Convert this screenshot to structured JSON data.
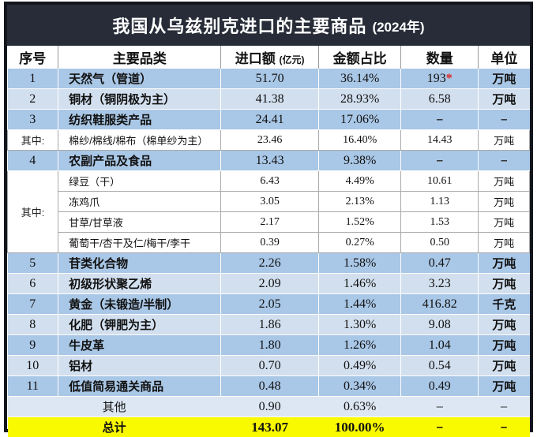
{
  "title": {
    "main": "我国从乌兹别克进口的主要商品",
    "year": "(2024年)"
  },
  "header": {
    "no": "序号",
    "category": "主要品类",
    "amount": "进口额",
    "amount_unit": "(亿元)",
    "share": "金额占比",
    "quantity": "数量",
    "unit": "单位"
  },
  "labels": {
    "among": "其中:"
  },
  "colors": {
    "title_bg": "#272c38",
    "row_medium": "#a9c7e6",
    "row_light": "#d2dfee",
    "row_pale": "#dde7f3",
    "total_row_yellow": "#f9f900",
    "star_red": "#e02220"
  },
  "rows": [
    {
      "no": "1",
      "name": "天然气（管道）",
      "amount": "51.70",
      "share": "36.14%",
      "qty": "193",
      "star": "*",
      "unit": "万吨"
    },
    {
      "no": "2",
      "name": "铜材（铜阴极为主）",
      "amount": "41.38",
      "share": "28.93%",
      "qty": "6.58",
      "unit": "万吨"
    },
    {
      "no": "3",
      "name": "纺织鞋服类产品",
      "amount": "24.41",
      "share": "17.06%",
      "qty": "–",
      "unit": "–"
    },
    {
      "no": "其中:",
      "name": "棉纱/棉线/棉布（棉单纱为主）",
      "amount": "23.46",
      "share": "16.40%",
      "qty": "14.43",
      "unit": "万吨"
    },
    {
      "no": "4",
      "name": "农副产品及食品",
      "amount": "13.43",
      "share": "9.38%",
      "qty": "–",
      "unit": "–"
    },
    {
      "name": "绿豆（干）",
      "amount": "6.43",
      "share": "4.49%",
      "qty": "10.61",
      "unit": "万吨"
    },
    {
      "name": "冻鸡爪",
      "amount": "3.05",
      "share": "2.13%",
      "qty": "1.13",
      "unit": "万吨"
    },
    {
      "name": "甘草/甘草液",
      "amount": "2.17",
      "share": "1.52%",
      "qty": "1.53",
      "unit": "万吨"
    },
    {
      "name": "葡萄干/杏干及仁/梅干/李干",
      "amount": "0.39",
      "share": "0.27%",
      "qty": "0.50",
      "unit": "万吨"
    },
    {
      "no": "5",
      "name": "苷类化合物",
      "amount": "2.26",
      "share": "1.58%",
      "qty": "0.47",
      "unit": "万吨"
    },
    {
      "no": "6",
      "name": "初级形状聚乙烯",
      "amount": "2.09",
      "share": "1.46%",
      "qty": "3.23",
      "unit": "万吨"
    },
    {
      "no": "7",
      "name": "黄金（未锻造/半制）",
      "amount": "2.05",
      "share": "1.44%",
      "qty": "416.82",
      "unit": "千克"
    },
    {
      "no": "8",
      "name": "化肥（钾肥为主）",
      "amount": "1.86",
      "share": "1.30%",
      "qty": "9.08",
      "unit": "万吨"
    },
    {
      "no": "9",
      "name": "牛皮革",
      "amount": "1.80",
      "share": "1.26%",
      "qty": "1.04",
      "unit": "万吨"
    },
    {
      "no": "10",
      "name": "铝材",
      "amount": "0.70",
      "share": "0.49%",
      "qty": "0.54",
      "unit": "万吨"
    },
    {
      "no": "11",
      "name": "低值简易通关商品",
      "amount": "0.48",
      "share": "0.34%",
      "qty": "0.49",
      "unit": "万吨"
    },
    {
      "name": "其他",
      "amount": "0.90",
      "share": "0.63%",
      "qty": "–",
      "unit": "–"
    },
    {
      "name": "总计",
      "amount": "143.07",
      "share": "100.00%",
      "qty": "–",
      "unit": "–"
    }
  ]
}
